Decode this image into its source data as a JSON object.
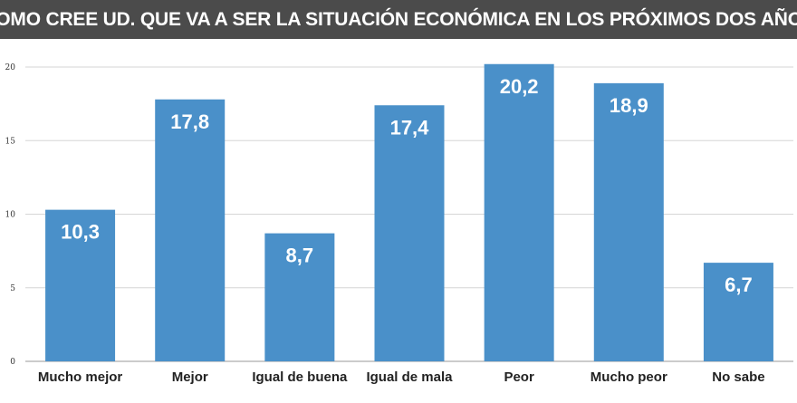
{
  "title": "¿COMO CREE UD. QUE VA A SER LA SITUACIÓN ECONÓMICA EN LOS PRÓXIMOS DOS AÑOS?",
  "colors": {
    "title_bg": "#4b4b4b",
    "bar": "#4a90c9",
    "grid": "#d6d6d6",
    "axis": "#999999"
  },
  "chart_data": {
    "type": "bar",
    "title": "¿COMO CREE UD. QUE VA A SER LA SITUACIÓN ECONÓMICA EN LOS PRÓXIMOS DOS AÑOS?",
    "categories": [
      "Mucho mejor",
      "Mejor",
      "Igual de buena",
      "Igual de mala",
      "Peor",
      "Mucho peor",
      "No sabe"
    ],
    "values": [
      10.3,
      17.8,
      8.7,
      17.4,
      20.2,
      18.9,
      6.7
    ],
    "value_labels": [
      "10,3",
      "17,8",
      "8,7",
      "17,4",
      "20,2",
      "18,9",
      "6,7"
    ],
    "y_ticks": [
      0,
      5,
      10,
      15,
      20
    ],
    "ylim": [
      0,
      20.3
    ],
    "xlabel": "",
    "ylabel": "",
    "grid": true,
    "legend": "none"
  }
}
